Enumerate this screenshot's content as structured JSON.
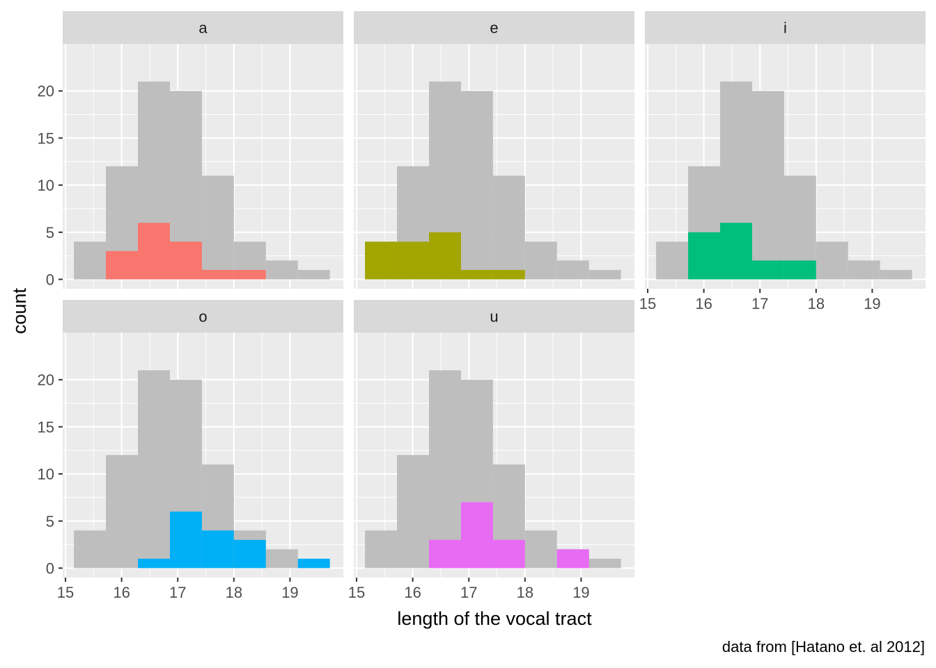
{
  "chart_data": {
    "type": "bar",
    "subtype": "faceted-histogram",
    "title": "",
    "xlabel": "length of the vocal tract",
    "ylabel": "count",
    "caption": "data from [Hatano et. al 2012]",
    "xlim": [
      14.95,
      19.95
    ],
    "ylim": [
      -1,
      25
    ],
    "xticks": [
      15,
      16,
      17,
      18,
      19
    ],
    "yticks": [
      0,
      5,
      10,
      15,
      20
    ],
    "bin_edges": [
      15.15,
      15.72,
      16.29,
      16.86,
      17.43,
      18.0,
      18.57,
      19.14,
      19.71
    ],
    "background_totals": [
      4,
      12,
      21,
      20,
      11,
      4,
      2,
      1
    ],
    "background_color": "#BEBEBE",
    "panel_background": "#EBEBEB",
    "strip_background": "#D9D9D9",
    "grid": true,
    "facets": [
      {
        "label": "a",
        "color": "#F8766D",
        "counts": [
          0,
          3,
          6,
          4,
          1,
          1,
          0,
          0
        ]
      },
      {
        "label": "e",
        "color": "#A3A500",
        "counts": [
          4,
          4,
          5,
          1,
          1,
          0,
          0,
          0
        ]
      },
      {
        "label": "i",
        "color": "#00BF7D",
        "counts": [
          0,
          5,
          6,
          2,
          2,
          0,
          0,
          0
        ]
      },
      {
        "label": "o",
        "color": "#00B0F6",
        "counts": [
          0,
          0,
          1,
          6,
          4,
          3,
          0,
          1
        ]
      },
      {
        "label": "u",
        "color": "#E76BF3",
        "counts": [
          0,
          0,
          3,
          7,
          3,
          0,
          2,
          0
        ]
      }
    ]
  }
}
